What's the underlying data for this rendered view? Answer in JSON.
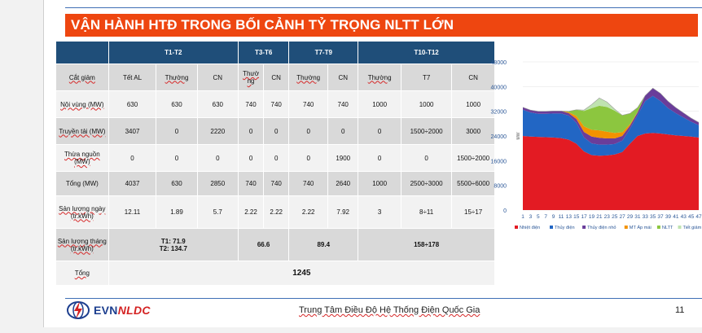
{
  "slide": {
    "title": "VẬN HÀNH HTĐ TRONG BỐI CẢNH TỶ TRỌNG NLTT LỚN",
    "page_number": "11",
    "footer_org": "Trung Tâm Điều Độ Hệ Thống Điện Quốc Gia",
    "logo_text_1": "EVN",
    "logo_text_2": "NLDC"
  },
  "table": {
    "groups": [
      "T1-T2",
      "T3-T6",
      "T7-T9",
      "T10-T12"
    ],
    "row_cat": {
      "label": "Cắt giảm",
      "cells": [
        "Tết AL",
        "Thường",
        "CN",
        "Thườ ng",
        "CN",
        "Thường",
        "CN",
        "Thường",
        "T7",
        "CN"
      ]
    },
    "row_noivung": {
      "label": "Nội vùng (MW)",
      "cells": [
        "630",
        "630",
        "630",
        "740",
        "740",
        "740",
        "740",
        "1000",
        "1000",
        "1000"
      ]
    },
    "row_truyentai": {
      "label": "Truyền tải (MW)",
      "cells": [
        "3407",
        "0",
        "2220",
        "0",
        "0",
        "0",
        "0",
        "0",
        "1500÷2000",
        "3000"
      ]
    },
    "row_thuanguon": {
      "label": "Thừa nguồn (MW)",
      "cells": [
        "0",
        "0",
        "0",
        "0",
        "0",
        "0",
        "1900",
        "0",
        "0",
        "1500÷2000"
      ]
    },
    "row_tong": {
      "label": "Tổng (MW)",
      "cells": [
        "4037",
        "630",
        "2850",
        "740",
        "740",
        "740",
        "2640",
        "1000",
        "2500÷3000",
        "5500÷6000"
      ]
    },
    "row_sl_ngay": {
      "label": "Sản lượng ngày (tr.kWh)",
      "cells": [
        "12.11",
        "1.89",
        "5.7",
        "2.22",
        "2.22",
        "2.22",
        "7.92",
        "3",
        "8÷11",
        "15÷17"
      ]
    },
    "row_sl_thang": {
      "label": "Sản lượng tháng (tr.kWh)",
      "g1_line1": "T1: 71.9",
      "g1_line2": "T2: 134.7",
      "g2": "66.6",
      "g3": "89.4",
      "g4": "158÷178"
    },
    "row_total": {
      "label": "Tổng",
      "value": "1245"
    }
  },
  "chart_data": {
    "type": "area",
    "stacked": true,
    "ylabel": "MW",
    "ylim": [
      0,
      48000
    ],
    "yticks": [
      0,
      8000,
      16000,
      24000,
      32000,
      40000,
      48000
    ],
    "x": [
      1,
      3,
      5,
      7,
      9,
      11,
      13,
      15,
      17,
      19,
      21,
      23,
      25,
      27,
      29,
      31,
      33,
      35,
      37,
      39,
      41,
      43,
      45,
      47
    ],
    "series": [
      {
        "name": "Nhiệt điện",
        "color": "#e31b23",
        "values": [
          24000,
          23800,
          23700,
          23600,
          23500,
          23300,
          22800,
          21500,
          19000,
          17800,
          17600,
          17700,
          18000,
          18800,
          21500,
          24000,
          24800,
          25000,
          24800,
          24500,
          24200,
          24000,
          23800,
          23500
        ]
      },
      {
        "name": "Thủy điện",
        "color": "#2266c4",
        "values": [
          8500,
          7800,
          7500,
          7600,
          7800,
          8000,
          7800,
          6800,
          4500,
          3800,
          3600,
          3500,
          3400,
          3700,
          4800,
          6800,
          10500,
          12000,
          10500,
          8500,
          7200,
          6000,
          4800,
          4000
        ]
      },
      {
        "name": "Thủy điện nhỏ",
        "color": "#6a3d9a",
        "values": [
          800,
          800,
          800,
          800,
          800,
          800,
          800,
          1200,
          1800,
          2200,
          2200,
          2000,
          1800,
          1500,
          1000,
          800,
          1800,
          2500,
          2500,
          2200,
          1800,
          1500,
          1200,
          900
        ]
      },
      {
        "name": "MT Áp mái",
        "color": "#f39200",
        "values": [
          0,
          0,
          0,
          0,
          0,
          0,
          300,
          1000,
          1800,
          2200,
          2400,
          2200,
          1800,
          1200,
          500,
          100,
          0,
          0,
          0,
          0,
          0,
          0,
          0,
          0
        ]
      },
      {
        "name": "NLTT",
        "color": "#8cc63f",
        "values": [
          0,
          0,
          0,
          0,
          0,
          0,
          300,
          2000,
          5000,
          7000,
          8000,
          8000,
          7200,
          5500,
          3500,
          1500,
          0,
          0,
          0,
          0,
          0,
          0,
          0,
          0
        ]
      },
      {
        "name": "Tiết giảm",
        "color": "#bfe3b0",
        "values": [
          0,
          0,
          0,
          0,
          0,
          0,
          0,
          0,
          300,
          1200,
          2500,
          1600,
          500,
          0,
          0,
          0,
          0,
          0,
          0,
          0,
          0,
          0,
          0,
          0
        ]
      }
    ],
    "legend_position": "bottom"
  }
}
